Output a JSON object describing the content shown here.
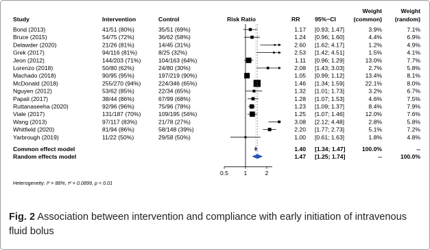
{
  "chart_data": {
    "type": "forest",
    "scale": "log",
    "xlim": [
      0.5,
      3
    ],
    "xticks": [
      "0.5",
      "1",
      "2"
    ],
    "x_tick_values": [
      0.5,
      1,
      2
    ],
    "columns": {
      "study": "Study",
      "intervention": "Intervention",
      "control": "Control",
      "plot": "Risk Ratio",
      "rr": "RR",
      "ci": "95%−CI",
      "wfixed": "Weight (common)",
      "wfixed_line1": "Weight",
      "wfixed_line2": "(common)",
      "wrandom_line1": "Weight",
      "wrandom_line2": "(random)"
    },
    "studies": [
      {
        "study": "Bond  (2013)",
        "intervention": "41/51 (80%)",
        "control": "35/51 (69%)",
        "rr": 1.17,
        "lo": 0.93,
        "hi": 1.47,
        "rr_text": "1.17",
        "ci_text": "[0.93; 1.47]",
        "wf": "3.9%",
        "wr": "7.1%"
      },
      {
        "study": "Bruce  (2015)",
        "intervention": "54/75 (72%)",
        "control": "36/62 (58%)",
        "rr": 1.24,
        "lo": 0.96,
        "hi": 1.6,
        "rr_text": "1.24",
        "ci_text": "[0.96; 1.60]",
        "wf": "4.4%",
        "wr": "6.9%"
      },
      {
        "study": "Delawder  (2020)",
        "intervention": "21/26 (81%)",
        "control": "14/45 (31%)",
        "rr": 2.6,
        "lo": 1.62,
        "hi": 4.17,
        "rr_text": "2.60",
        "ci_text": "[1.62; 4.17]",
        "wf": "1.2%",
        "wr": "4.9%"
      },
      {
        "study": "Grek  (2017)",
        "intervention": "94/116 (81%)",
        "control": "8/25 (32%)",
        "rr": 2.53,
        "lo": 1.42,
        "hi": 4.51,
        "rr_text": "2.53",
        "ci_text": "[1.42; 4.51]",
        "wf": "1.5%",
        "wr": "4.1%"
      },
      {
        "study": "Jeon  (2012)",
        "intervention": "144/203 (71%)",
        "control": "104/163 (64%)",
        "rr": 1.11,
        "lo": 0.96,
        "hi": 1.29,
        "rr_text": "1.11",
        "ci_text": "[0.96; 1.29]",
        "wf": "13.0%",
        "wr": "7.7%"
      },
      {
        "study": "Lorenzo  (2018)",
        "intervention": "50/80 (62%)",
        "control": "24/80 (30%)",
        "rr": 2.08,
        "lo": 1.43,
        "hi": 3.03,
        "rr_text": "2.08",
        "ci_text": "[1.43; 3.03]",
        "wf": "2.7%",
        "wr": "5.8%"
      },
      {
        "study": "Machado  (2018)",
        "intervention": "90/95 (95%)",
        "control": "197/219 (90%)",
        "rr": 1.05,
        "lo": 0.99,
        "hi": 1.12,
        "rr_text": "1.05",
        "ci_text": "[0.99; 1.12]",
        "wf": "13.4%",
        "wr": "8.1%"
      },
      {
        "study": "McDonald  (2018)",
        "intervention": "255/270 (94%)",
        "control": "224/346 (65%)",
        "rr": 1.46,
        "lo": 1.34,
        "hi": 1.59,
        "rr_text": "1.46",
        "ci_text": "[1.34; 1.59]",
        "wf": "22.1%",
        "wr": "8.0%"
      },
      {
        "study": "Nguyen  (2012)",
        "intervention": "53/62 (85%)",
        "control": "22/34 (65%)",
        "rr": 1.32,
        "lo": 1.01,
        "hi": 1.73,
        "rr_text": "1.32",
        "ci_text": "[1.01; 1.73]",
        "wf": "3.2%",
        "wr": "6.7%"
      },
      {
        "study": "Papali  (2017)",
        "intervention": "38/44 (86%)",
        "control": "67/99 (68%)",
        "rr": 1.28,
        "lo": 1.07,
        "hi": 1.53,
        "rr_text": "1.28",
        "ci_text": "[1.07; 1.53]",
        "wf": "4.6%",
        "wr": "7.5%"
      },
      {
        "study": "Ruttanaseeha  (2020)",
        "intervention": "92/96 (96%)",
        "control": "75/96 (78%)",
        "rr": 1.23,
        "lo": 1.09,
        "hi": 1.37,
        "rr_text": "1.23",
        "ci_text": "[1.09; 1.37]",
        "wf": "8.4%",
        "wr": "7.9%"
      },
      {
        "study": "Viale  (2017)",
        "intervention": "131/187 (70%)",
        "control": "109/195 (56%)",
        "rr": 1.25,
        "lo": 1.07,
        "hi": 1.46,
        "rr_text": "1.25",
        "ci_text": "[1.07; 1.46]",
        "wf": "12.0%",
        "wr": "7.6%"
      },
      {
        "study": "Wang  (2013)",
        "intervention": "97/117 (83%)",
        "control": "21/78 (27%)",
        "rr": 3.08,
        "lo": 2.12,
        "hi": 4.48,
        "rr_text": "3.08",
        "ci_text": "[2.12; 4.48]",
        "wf": "2.8%",
        "wr": "5.8%"
      },
      {
        "study": "Whitfield  (2020)",
        "intervention": "81/94 (86%)",
        "control": "58/148 (39%)",
        "rr": 2.2,
        "lo": 1.77,
        "hi": 2.73,
        "rr_text": "2.20",
        "ci_text": "[1.77; 2.73]",
        "wf": "5.1%",
        "wr": "7.2%"
      },
      {
        "study": "Yarbrough  (2019)",
        "intervention": "11/22 (50%)",
        "control": "29/58 (50%)",
        "rr": 1.0,
        "lo": 0.61,
        "hi": 1.63,
        "rr_text": "1.00",
        "ci_text": "[0.61; 1.63]",
        "wf": "1.8%",
        "wr": "4.8%"
      }
    ],
    "summary": {
      "common": {
        "label": "Common effect model",
        "rr": 1.4,
        "lo": 1.34,
        "hi": 1.47,
        "rr_text": "1.40",
        "ci_text": "[1.34; 1.47]",
        "wf": "100.0%",
        "wr": "--"
      },
      "random": {
        "label": "Random effects model",
        "rr": 1.47,
        "lo": 1.25,
        "hi": 1.74,
        "rr_text": "1.47",
        "ci_text": "[1.25; 1.74]",
        "wf": "--",
        "wr": "100.0%"
      }
    },
    "heterogeneity_prefix": "Heterogeneity: ",
    "heterogeneity_i2": "I² = 88%, τ² = 0.0899, ",
    "heterogeneity_p": "p < 0.01",
    "colors": {
      "diamond_common": "#4a4a8c",
      "diamond_random": "#2255b4",
      "squares": "#000000"
    }
  },
  "caption": {
    "fig_label": "Fig. 2",
    "text": " Association between intervention and compliance with early initiation of intravenous fluid bolus"
  }
}
